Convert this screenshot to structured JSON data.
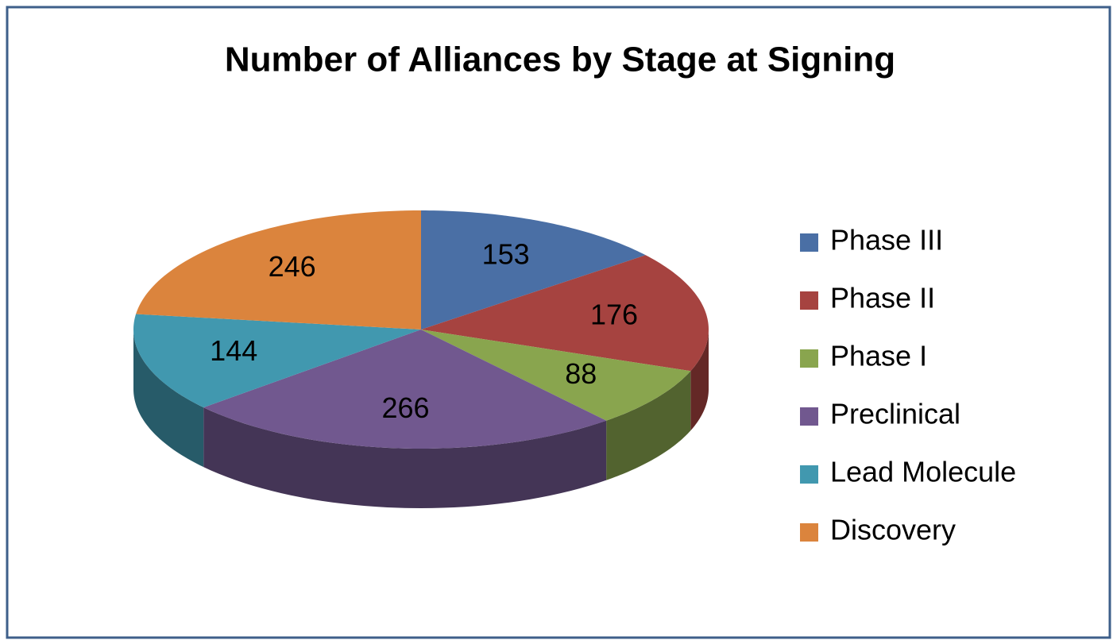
{
  "chart_data": {
    "type": "pie",
    "title": "Number of Alliances by Stage at Signing",
    "categories": [
      "Phase III",
      "Phase II",
      "Phase I",
      "Preclinical",
      "Lead Molecule",
      "Discovery"
    ],
    "values": [
      153,
      176,
      88,
      266,
      144,
      246
    ],
    "colors": [
      "#4a6fa5",
      "#a64340",
      "#89a54e",
      "#71588f",
      "#4198af",
      "#db843d"
    ],
    "legend": "right"
  }
}
